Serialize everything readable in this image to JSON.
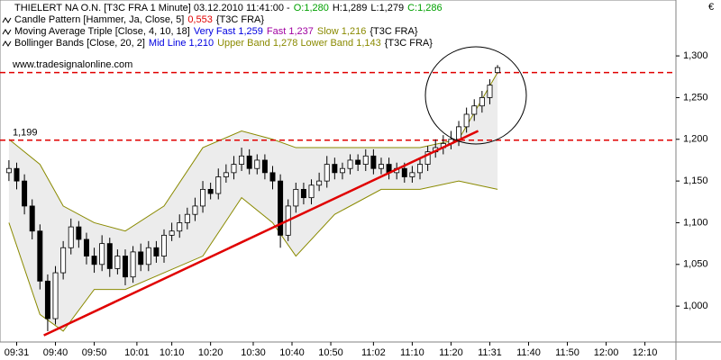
{
  "header": {
    "title": "THIELERT NA O.N. [T3C FRA  1 Minute] 03.12.2010 11:41:00 -",
    "quote": [
      {
        "text": "O:1,280",
        "color": "#00a000"
      },
      {
        "text": "H:1,289",
        "color": "#000000"
      },
      {
        "text": "L:1,279",
        "color": "#000000"
      },
      {
        "text": "C:1,286",
        "color": "#00a000"
      }
    ],
    "indicators": [
      {
        "name": "Candle Pattern [Hammer, Ja, Close, 5]",
        "parts": [
          {
            "text": "0,553",
            "color": "#e00000"
          }
        ],
        "source": "{T3C FRA}"
      },
      {
        "name": "Moving Average Triple [Close, 4, 10, 18]",
        "parts": [
          {
            "text": "Very Fast 1,259",
            "color": "#0000e0"
          },
          {
            "text": "Fast 1,237",
            "color": "#a000a0"
          },
          {
            "text": "Slow 1,216",
            "color": "#8a8a00"
          }
        ],
        "source": "{T3C FRA}"
      },
      {
        "name": "Bollinger Bands [Close, 20, 2]",
        "parts": [
          {
            "text": "Mid Line 1,210",
            "color": "#0000e0"
          },
          {
            "text": "Upper Band 1,278 Lower Band 1,143",
            "color": "#8a8a00"
          }
        ],
        "source": "{T3C FRA}"
      }
    ],
    "watermark": "www.tradesignalonline.com"
  },
  "chart_data": {
    "type": "candlestick",
    "y_axis_label": "€",
    "x": [
      0,
      2,
      4,
      6,
      8,
      10,
      12,
      14,
      16,
      18,
      20,
      22,
      24,
      26,
      28,
      30,
      32,
      34,
      36,
      38,
      40,
      42,
      44,
      46,
      48,
      50,
      52,
      54,
      56,
      58,
      60,
      62,
      64,
      66,
      68,
      70,
      72,
      74,
      76,
      78,
      80,
      82,
      84,
      86,
      88,
      90,
      92,
      94,
      96,
      98,
      100,
      102,
      104,
      106,
      108,
      110,
      112,
      114,
      116,
      118,
      120,
      122,
      124,
      126
    ],
    "open": [
      1.16,
      1.165,
      1.15,
      1.12,
      1.09,
      1.03,
      0.985,
      1.04,
      1.07,
      1.095,
      1.08,
      1.06,
      1.05,
      1.075,
      1.045,
      1.06,
      1.035,
      1.065,
      1.05,
      1.07,
      1.06,
      1.085,
      1.09,
      1.1,
      1.11,
      1.12,
      1.14,
      1.135,
      1.155,
      1.16,
      1.17,
      1.18,
      1.165,
      1.175,
      1.16,
      1.15,
      1.085,
      1.12,
      1.14,
      1.13,
      1.145,
      1.15,
      1.17,
      1.16,
      1.165,
      1.175,
      1.17,
      1.18,
      1.165,
      1.17,
      1.16,
      1.165,
      1.155,
      1.16,
      1.17,
      1.185,
      1.19,
      1.195,
      1.2,
      1.215,
      1.23,
      1.24,
      1.25,
      1.28
    ],
    "high": [
      1.175,
      1.172,
      1.158,
      1.128,
      1.098,
      1.038,
      1.048,
      1.078,
      1.105,
      1.102,
      1.088,
      1.07,
      1.085,
      1.082,
      1.068,
      1.068,
      1.072,
      1.075,
      1.078,
      1.078,
      1.092,
      1.1,
      1.11,
      1.118,
      1.13,
      1.15,
      1.148,
      1.165,
      1.17,
      1.18,
      1.19,
      1.188,
      1.182,
      1.182,
      1.168,
      1.158,
      1.128,
      1.148,
      1.148,
      1.152,
      1.16,
      1.18,
      1.178,
      1.172,
      1.182,
      1.182,
      1.188,
      1.188,
      1.178,
      1.178,
      1.172,
      1.172,
      1.168,
      1.178,
      1.192,
      1.2,
      1.205,
      1.21,
      1.222,
      1.238,
      1.248,
      1.258,
      1.272,
      1.289
    ],
    "low": [
      1.15,
      1.14,
      1.11,
      1.08,
      1.02,
      0.97,
      0.978,
      1.032,
      1.062,
      1.07,
      1.05,
      1.04,
      1.042,
      1.035,
      1.038,
      1.025,
      1.028,
      1.042,
      1.042,
      1.052,
      1.052,
      1.078,
      1.082,
      1.092,
      1.102,
      1.112,
      1.128,
      1.128,
      1.148,
      1.152,
      1.162,
      1.158,
      1.158,
      1.152,
      1.14,
      1.07,
      1.078,
      1.112,
      1.122,
      1.122,
      1.138,
      1.142,
      1.152,
      1.152,
      1.158,
      1.162,
      1.162,
      1.158,
      1.158,
      1.152,
      1.152,
      1.148,
      1.148,
      1.152,
      1.162,
      1.178,
      1.182,
      1.188,
      1.192,
      1.208,
      1.222,
      1.232,
      1.242,
      1.279
    ],
    "close": [
      1.165,
      1.15,
      1.12,
      1.09,
      1.03,
      0.985,
      1.04,
      1.07,
      1.095,
      1.08,
      1.06,
      1.05,
      1.075,
      1.045,
      1.06,
      1.035,
      1.065,
      1.05,
      1.07,
      1.06,
      1.085,
      1.09,
      1.1,
      1.11,
      1.12,
      1.14,
      1.135,
      1.155,
      1.16,
      1.17,
      1.18,
      1.165,
      1.175,
      1.16,
      1.15,
      1.085,
      1.12,
      1.14,
      1.13,
      1.145,
      1.15,
      1.17,
      1.16,
      1.165,
      1.175,
      1.17,
      1.18,
      1.165,
      1.17,
      1.16,
      1.165,
      1.155,
      1.16,
      1.17,
      1.185,
      1.19,
      1.195,
      1.2,
      1.215,
      1.23,
      1.24,
      1.25,
      1.265,
      1.286
    ],
    "up_color": "#ffffff",
    "down_color": "#000000",
    "bands": {
      "x": [
        0,
        8,
        14,
        22,
        30,
        40,
        50,
        60,
        68,
        74,
        84,
        96,
        106,
        116,
        126
      ],
      "upper": [
        1.2,
        1.17,
        1.12,
        1.1,
        1.09,
        1.12,
        1.19,
        1.21,
        1.2,
        1.19,
        1.19,
        1.19,
        1.19,
        1.2,
        1.28
      ],
      "lower": [
        1.1,
        0.99,
        0.97,
        1.02,
        1.02,
        1.04,
        1.06,
        1.13,
        1.1,
        1.06,
        1.11,
        1.14,
        1.14,
        1.15,
        1.14
      ],
      "color": "#8a8a00",
      "fill": "#ececec"
    },
    "trendline": {
      "x": [
        9,
        121
      ],
      "y": [
        0.965,
        1.21
      ],
      "color": "#e00000"
    },
    "hlines": [
      {
        "value": 1.199,
        "label": "1,199"
      },
      {
        "value": 1.28
      }
    ],
    "hline_color": "#e00000",
    "xlim": [
      -2.3,
      172
    ],
    "ylim": [
      0.957,
      1.367
    ],
    "xticks": [
      {
        "value": 2,
        "label": "09:31"
      },
      {
        "value": 12,
        "label": "09:40"
      },
      {
        "value": 22,
        "label": "09:50"
      },
      {
        "value": 33,
        "label": "10:01"
      },
      {
        "value": 42,
        "label": "10:10"
      },
      {
        "value": 52,
        "label": "10:20"
      },
      {
        "value": 63,
        "label": "10:30"
      },
      {
        "value": 73,
        "label": "10:40"
      },
      {
        "value": 83,
        "label": "10:50"
      },
      {
        "value": 94,
        "label": "11:02"
      },
      {
        "value": 104,
        "label": "11:10"
      },
      {
        "value": 114,
        "label": "11:20"
      },
      {
        "value": 124,
        "label": "11:31"
      },
      {
        "value": 134,
        "label": "11:40"
      },
      {
        "value": 144,
        "label": "11:50"
      },
      {
        "value": 154,
        "label": "12:00"
      },
      {
        "value": 164,
        "label": "12:10"
      }
    ],
    "yticks": [
      {
        "value": 1.0,
        "label": "1,000"
      },
      {
        "value": 1.05,
        "label": "1,050"
      },
      {
        "value": 1.1,
        "label": "1,100"
      },
      {
        "value": 1.15,
        "label": "1,150"
      },
      {
        "value": 1.2,
        "label": "1,200"
      },
      {
        "value": 1.25,
        "label": "1,250"
      },
      {
        "value": 1.3,
        "label": "1,300"
      }
    ]
  }
}
